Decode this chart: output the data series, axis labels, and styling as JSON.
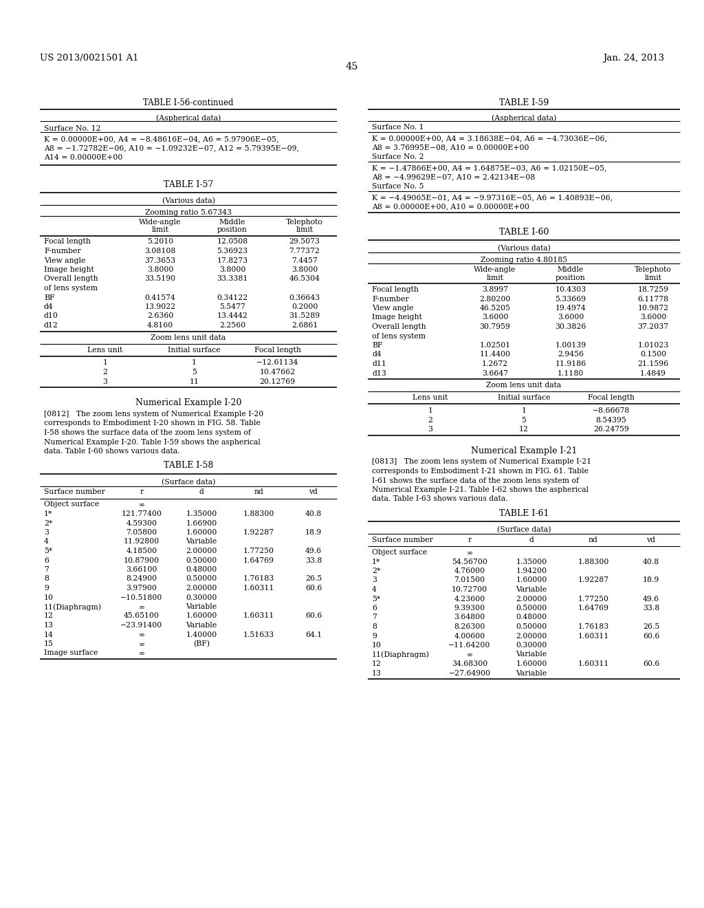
{
  "page_number": "45",
  "patent_number": "US 2013/0021501 A1",
  "patent_date": "Jan. 24, 2013",
  "background_color": "#ffffff",
  "text_color": "#000000",
  "left_column": {
    "table56_continued": {
      "title": "TABLE I-56-continued",
      "subtitle": "(Aspherical data)",
      "surface_no": "Surface No. 12",
      "data_lines": [
        "K = 0.00000E+00, A4 = −8.48616E−04, A6 = 5.97906E−05,",
        "A8 = −1.72782E−06, A10 = −1.09232E−07, A12 = 5.79395E−09,",
        "A14 = 0.00000E+00"
      ]
    },
    "table57": {
      "title": "TABLE I-57",
      "subtitle": "(Various data)",
      "zooming_ratio": "Zooming ratio 5.67343",
      "col_headers": [
        "",
        "Wide-angle\nlimit",
        "Middle\nposition",
        "Telephoto\nlimit"
      ],
      "rows": [
        [
          "Focal length",
          "5.2010",
          "12.0508",
          "29.5073"
        ],
        [
          "F-number",
          "3.08108",
          "5.36923",
          "7.77372"
        ],
        [
          "View angle",
          "37.3653",
          "17.8273",
          "7.4457"
        ],
        [
          "Image height",
          "3.8000",
          "3.8000",
          "3.8000"
        ],
        [
          "Overall length\nof lens system",
          "33.5190",
          "33.3381",
          "46.5304"
        ],
        [
          "BF",
          "0.41574",
          "0.34122",
          "0.36643"
        ],
        [
          "d4",
          "13.9022",
          "5.5477",
          "0.2000"
        ],
        [
          "d10",
          "2.6360",
          "13.4442",
          "31.5289"
        ],
        [
          "d12",
          "4.8160",
          "2.2560",
          "2.6861"
        ]
      ],
      "zoom_lens_title": "Zoom lens unit data",
      "zoom_lens_headers": [
        "Lens unit",
        "Initial surface",
        "Focal length"
      ],
      "zoom_lens_rows": [
        [
          "1",
          "1",
          "−12.61134"
        ],
        [
          "2",
          "5",
          "10.47662"
        ],
        [
          "3",
          "11",
          "20.12769"
        ]
      ]
    },
    "numerical_example_20": {
      "title": "Numerical Example I-20",
      "text": "[0812]   The zoom lens system of Numerical Example I-20\ncorresponds to Embodiment I-20 shown in FIG. 58. Table\nI-58 shows the surface data of the zoom lens system of\nNumerical Example I-20. Table I-59 shows the aspherical\ndata. Table I-60 shows various data."
    },
    "table58": {
      "title": "TABLE I-58",
      "subtitle": "(Surface data)",
      "col_headers": [
        "Surface number",
        "r",
        "d",
        "nd",
        "vd"
      ],
      "rows": [
        [
          "Object surface",
          "∞",
          "",
          "",
          ""
        ],
        [
          "1*",
          "121.77400",
          "1.35000",
          "1.88300",
          "40.8"
        ],
        [
          "2*",
          "4.59300",
          "1.66900",
          "",
          ""
        ],
        [
          "3",
          "7.05800",
          "1.60000",
          "1.92287",
          "18.9"
        ],
        [
          "4",
          "11.92800",
          "Variable",
          "",
          ""
        ],
        [
          "5*",
          "4.18500",
          "2.00000",
          "1.77250",
          "49.6"
        ],
        [
          "6",
          "10.87900",
          "0.50000",
          "1.64769",
          "33.8"
        ],
        [
          "7",
          "3.66100",
          "0.48000",
          "",
          ""
        ],
        [
          "8",
          "8.24900",
          "0.50000",
          "1.76183",
          "26.5"
        ],
        [
          "9",
          "3.97900",
          "2.00000",
          "1.60311",
          "60.6"
        ],
        [
          "10",
          "−10.51800",
          "0.30000",
          "",
          ""
        ],
        [
          "11(Diaphragm)",
          "∞",
          "Variable",
          "",
          ""
        ],
        [
          "12",
          "45.65100",
          "1.60000",
          "1.60311",
          "60.6"
        ],
        [
          "13",
          "−23.91400",
          "Variable",
          "",
          ""
        ],
        [
          "14",
          "∞",
          "1.40000",
          "1.51633",
          "64.1"
        ],
        [
          "15",
          "∞",
          "(BF)",
          "",
          ""
        ],
        [
          "Image surface",
          "∞",
          "",
          "",
          ""
        ]
      ]
    }
  },
  "right_column": {
    "table59": {
      "title": "TABLE I-59",
      "subtitle": "(Aspherical data)",
      "sections": [
        {
          "header": "Surface No. 1",
          "lines": [
            "K = 0.00000E+00, A4 = 3.18638E−04, A6 = −4.73036E−06,",
            "A8 = 3.76995E−08, A10 = 0.00000E+00"
          ]
        },
        {
          "header": "Surface No. 2",
          "lines": [
            "K = −1.47866E+00, A4 = 1.64875E−03, A6 = 1.02150E−05,",
            "A8 = −4.99629E−07, A10 = 2.42134E−08"
          ]
        },
        {
          "header": "Surface No. 5",
          "lines": [
            "K = −4.49065E−01, A4 = −9.97316E−05, A6 = 1.40893E−06,",
            "A8 = 0.00000E+00, A10 = 0.00000E+00"
          ]
        }
      ]
    },
    "table60": {
      "title": "TABLE I-60",
      "subtitle": "(Various data)",
      "zooming_ratio": "Zooming ratio 4.80185",
      "col_headers": [
        "",
        "Wide-angle\nlimit",
        "Middle\nposition",
        "Telephoto\nlimit"
      ],
      "rows": [
        [
          "Focal length",
          "3.8997",
          "10.4303",
          "18.7259"
        ],
        [
          "F-number",
          "2.80200",
          "5.33669",
          "6.11778"
        ],
        [
          "View angle",
          "46.5205",
          "19.4974",
          "10.9872"
        ],
        [
          "Image height",
          "3.6000",
          "3.6000",
          "3.6000"
        ],
        [
          "Overall length\nof lens system",
          "30.7959",
          "30.3826",
          "37.2037"
        ],
        [
          "BF",
          "1.02501",
          "1.00139",
          "1.01023"
        ],
        [
          "d4",
          "11.4400",
          "2.9456",
          "0.1500"
        ],
        [
          "d11",
          "1.2672",
          "11.9186",
          "21.1596"
        ],
        [
          "d13",
          "3.6647",
          "1.1180",
          "1.4849"
        ]
      ],
      "zoom_lens_title": "Zoom lens unit data",
      "zoom_lens_headers": [
        "Lens unit",
        "Initial surface",
        "Focal length"
      ],
      "zoom_lens_rows": [
        [
          "1",
          "1",
          "−8.66678"
        ],
        [
          "2",
          "5",
          "8.54395"
        ],
        [
          "3",
          "12",
          "26.24759"
        ]
      ]
    },
    "numerical_example_21": {
      "title": "Numerical Example I-21",
      "text": "[0813]   The zoom lens system of Numerical Example I-21\ncorresponds to Embodiment I-21 shown in FIG. 61. Table\nI-61 shows the surface data of the zoom lens system of\nNumerical Example I-21. Table I-62 shows the aspherical\ndata. Table I-63 shows various data."
    },
    "table61": {
      "title": "TABLE I-61",
      "subtitle": "(Surface data)",
      "col_headers": [
        "Surface number",
        "r",
        "d",
        "nd",
        "vd"
      ],
      "rows": [
        [
          "Object surface",
          "∞",
          "",
          "",
          ""
        ],
        [
          "1*",
          "54.56700",
          "1.35000",
          "1.88300",
          "40.8"
        ],
        [
          "2*",
          "4.76000",
          "1.94200",
          "",
          ""
        ],
        [
          "3",
          "7.01500",
          "1.60000",
          "1.92287",
          "18.9"
        ],
        [
          "4",
          "10.72700",
          "Variable",
          "",
          ""
        ],
        [
          "5*",
          "4.23600",
          "2.00000",
          "1.77250",
          "49.6"
        ],
        [
          "6",
          "9.39300",
          "0.50000",
          "1.64769",
          "33.8"
        ],
        [
          "7",
          "3.64800",
          "0.48000",
          "",
          ""
        ],
        [
          "8",
          "8.26300",
          "0.50000",
          "1.76183",
          "26.5"
        ],
        [
          "9",
          "4.00600",
          "2.00000",
          "1.60311",
          "60.6"
        ],
        [
          "10",
          "−11.64200",
          "0.30000",
          "",
          ""
        ],
        [
          "11(Diaphragm)",
          "∞",
          "Variable",
          "",
          ""
        ],
        [
          "12",
          "34.68300",
          "1.60000",
          "1.60311",
          "60.6"
        ],
        [
          "13",
          "−27.64900",
          "Variable",
          "",
          ""
        ]
      ]
    }
  }
}
